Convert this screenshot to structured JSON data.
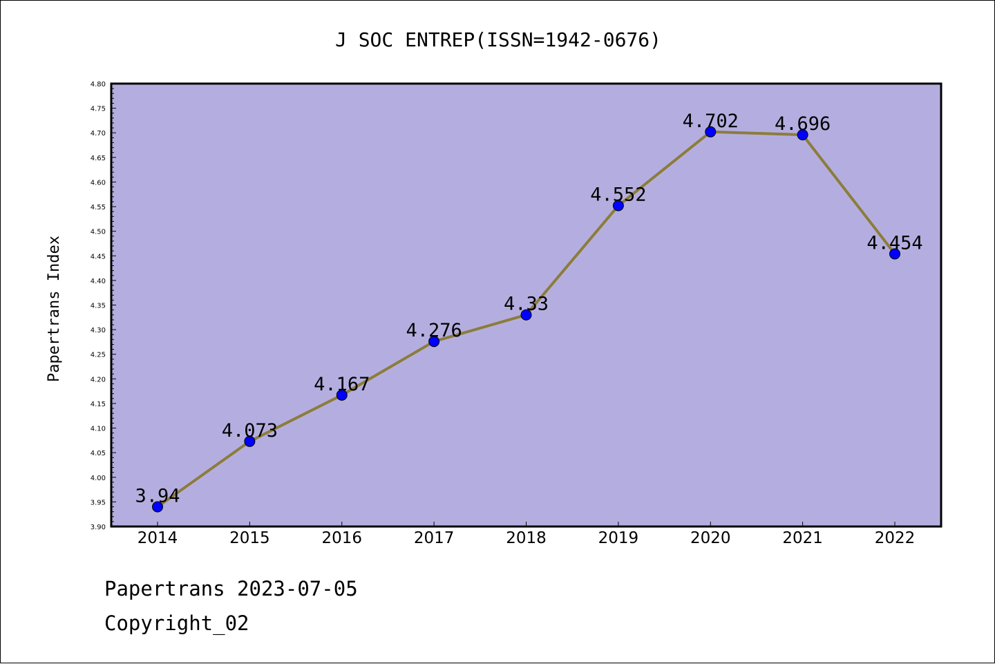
{
  "chart_data": {
    "type": "line",
    "title": "J SOC ENTREP(ISSN=1942-0676)",
    "xlabel": "",
    "ylabel": "Papertrans Index",
    "categories": [
      "2014",
      "2015",
      "2016",
      "2017",
      "2018",
      "2019",
      "2020",
      "2021",
      "2022"
    ],
    "values": [
      3.94,
      4.073,
      4.167,
      4.276,
      4.33,
      4.552,
      4.702,
      4.696,
      4.454
    ],
    "data_labels": [
      "3.94",
      "4.073",
      "4.167",
      "4.276",
      "4.33",
      "4.552",
      "4.702",
      "4.696",
      "4.454"
    ],
    "ylim": [
      3.9,
      4.8
    ],
    "yticks": [
      "3.90",
      "3.95",
      "4.00",
      "4.05",
      "4.10",
      "4.15",
      "4.20",
      "4.25",
      "4.30",
      "4.35",
      "4.40",
      "4.45",
      "4.50",
      "4.55",
      "4.60",
      "4.65",
      "4.70",
      "4.75",
      "4.80"
    ],
    "grid": false,
    "colors": {
      "plot_background": "#b4aee0",
      "line": "#8b7d3a",
      "marker": "#0000ff"
    }
  },
  "footer": {
    "line1": "Papertrans 2023-07-05",
    "line2": "Copyright_02"
  }
}
